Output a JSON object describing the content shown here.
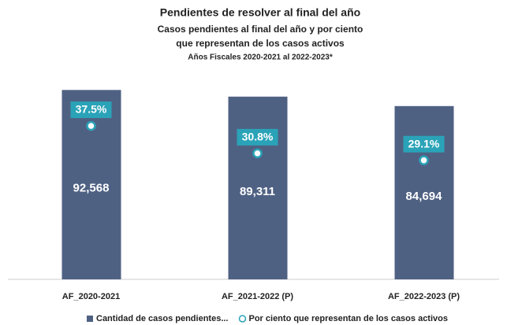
{
  "chart_data": {
    "type": "combo",
    "title": "Pendientes de resolver al final del año",
    "subtitle": [
      "Casos pendientes al final del año y por ciento",
      "que representan de los casos activos"
    ],
    "note": "Años Fiscales 2020-2021 al 2022-2023*",
    "categories": [
      "AF_2020-2021",
      "AF_2021-2022 (P)",
      "AF_2022-2023 (P)"
    ],
    "series": [
      {
        "name": "Cantidad de casos pendientes...",
        "type": "bar",
        "color": "#4f6183",
        "values": [
          92568,
          89311,
          84694
        ],
        "value_labels": [
          "92,568",
          "89,311",
          "84,694"
        ]
      },
      {
        "name": "Por ciento que representan de los casos activos",
        "type": "marker",
        "axis": "y2",
        "color": "#2aa3b8",
        "values": [
          37.5,
          30.8,
          29.1
        ],
        "value_labels": [
          "37.5%",
          "30.8%",
          "29.1%"
        ]
      }
    ],
    "ylim": [
      0,
      100000
    ],
    "y2lim": [
      0,
      50
    ],
    "legend": "bottom"
  }
}
